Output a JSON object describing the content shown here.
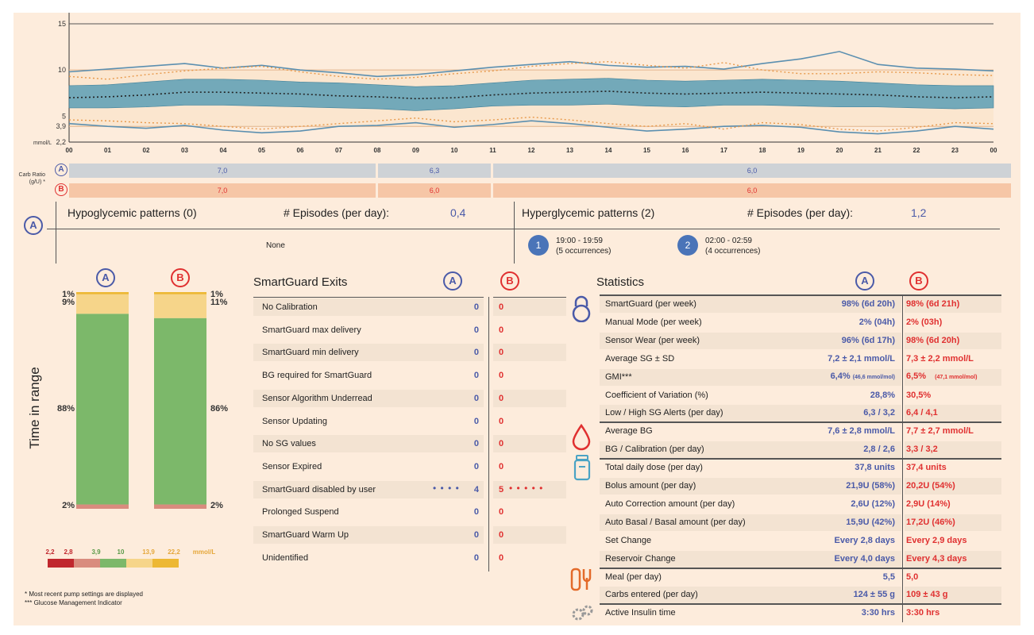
{
  "chart_data": {
    "type": "area",
    "y_unit": "mmol/L",
    "yticks": [
      {
        "label": "15",
        "v": 15
      },
      {
        "label": "10",
        "v": 10
      },
      {
        "label": "5",
        "v": 5
      },
      {
        "label": "3,9",
        "v": 3.9
      },
      {
        "label": "2,2",
        "v": 2.2
      }
    ],
    "x_hours": [
      "00",
      "01",
      "02",
      "03",
      "04",
      "05",
      "06",
      "07",
      "08",
      "09",
      "10",
      "11",
      "12",
      "13",
      "14",
      "15",
      "16",
      "17",
      "18",
      "19",
      "20",
      "21",
      "22",
      "23",
      "00"
    ],
    "median": [
      7.0,
      7.1,
      7.3,
      7.6,
      7.6,
      7.5,
      7.4,
      7.2,
      7.1,
      6.9,
      7.0,
      7.3,
      7.5,
      7.6,
      7.7,
      7.5,
      7.4,
      7.5,
      7.6,
      7.5,
      7.4,
      7.3,
      7.1,
      7.0,
      7.1
    ],
    "band_low": [
      5.9,
      5.9,
      6.0,
      6.2,
      6.2,
      6.1,
      6.0,
      5.9,
      5.8,
      5.6,
      5.8,
      6.1,
      6.2,
      6.2,
      6.3,
      6.1,
      6.0,
      6.2,
      6.2,
      6.1,
      6.0,
      6.0,
      5.9,
      5.8,
      5.9
    ],
    "band_high": [
      8.3,
      8.4,
      8.7,
      9.0,
      9.0,
      8.9,
      8.7,
      8.6,
      8.4,
      8.2,
      8.3,
      8.6,
      8.9,
      9.0,
      9.1,
      8.9,
      8.8,
      8.9,
      9.0,
      8.9,
      8.8,
      8.6,
      8.4,
      8.3,
      8.3
    ],
    "outer_low": [
      4.2,
      3.9,
      3.7,
      4.0,
      3.5,
      3.2,
      3.4,
      3.9,
      4.0,
      4.3,
      3.8,
      4.1,
      4.5,
      4.2,
      3.8,
      3.4,
      3.6,
      3.9,
      4.0,
      3.8,
      3.3,
      3.1,
      3.4,
      3.9,
      3.6
    ],
    "outer_high": [
      9.8,
      10.1,
      10.4,
      10.7,
      10.2,
      10.5,
      10.0,
      9.7,
      9.3,
      9.5,
      9.9,
      10.3,
      10.6,
      10.9,
      10.5,
      10.3,
      10.4,
      10.1,
      10.7,
      11.2,
      12.0,
      10.6,
      10.2,
      10.1,
      9.9
    ],
    "ref_low": [
      4.6,
      4.5,
      4.3,
      4.2,
      3.9,
      3.6,
      3.9,
      4.2,
      4.5,
      4.8,
      4.4,
      4.6,
      4.9,
      4.6,
      4.2,
      3.9,
      4.2,
      3.6,
      4.3,
      4.1,
      3.6,
      3.4,
      3.8,
      4.3,
      4.2
    ],
    "ref_high": [
      9.3,
      9.0,
      9.5,
      9.9,
      10.2,
      10.4,
      9.8,
      9.3,
      9.0,
      9.2,
      9.6,
      9.9,
      10.4,
      10.7,
      10.9,
      10.5,
      10.2,
      10.8,
      10.0,
      9.6,
      9.6,
      9.8,
      9.7,
      9.5,
      9.4
    ]
  },
  "carb_ratio": {
    "label": "Carb Ratio (g/U) *",
    "A": [
      {
        "value": "7,0"
      },
      {
        "value": "6,3"
      },
      {
        "value": "6,0"
      }
    ],
    "B": [
      {
        "value": "7,0"
      },
      {
        "value": "6,0"
      },
      {
        "value": "6,0"
      }
    ]
  },
  "patterns": {
    "marker": "A",
    "hypo_title": "Hypoglycemic patterns (0)",
    "hypo_ep_label": "# Episodes (per day):",
    "hypo_ep_value": "0,4",
    "hypo_body": "None",
    "hyper_title": "Hyperglycemic patterns (2)",
    "hyper_ep_label": "# Episodes (per day):",
    "hyper_ep_value": "1,2",
    "hyper_items": [
      {
        "n": "1",
        "time": "19:00 - 19:59",
        "occ": "(5 occurrences)"
      },
      {
        "n": "2",
        "time": "02:00 - 02:59",
        "occ": "(4 occurrences)"
      }
    ]
  },
  "time_in_range": {
    "ylabel": "Time in range",
    "A": {
      "marker": "A",
      "very_high": 1,
      "high": 9,
      "in_range": 88,
      "low": 2,
      "very_low": 0,
      "labels": {
        "very_high": "1%",
        "high": "9%",
        "in_range": "88%",
        "low": "2%"
      }
    },
    "B": {
      "marker": "B",
      "very_high": 1,
      "high": 11,
      "in_range": 86,
      "low": 2,
      "very_low": 0,
      "labels": {
        "very_high": "1%",
        "high": "11%",
        "in_range": "86%",
        "low": "2%"
      }
    },
    "legend_ticks": [
      "2,2",
      "2,8",
      "3,9",
      "10",
      "13,9",
      "22,2",
      "mmol/L"
    ],
    "colors": {
      "very_low": "#c0272d",
      "low": "#d98c7e",
      "in_range": "#7cb86a",
      "high": "#f6d58a",
      "very_high": "#edb834"
    }
  },
  "smartguard": {
    "title": "SmartGuard Exits",
    "col_a": "A",
    "col_b": "B",
    "rows": [
      {
        "label": "No Calibration",
        "a": "0",
        "b": "0"
      },
      {
        "label": "SmartGuard max delivery",
        "a": "0",
        "b": "0"
      },
      {
        "label": "SmartGuard min delivery",
        "a": "0",
        "b": "0"
      },
      {
        "label": "BG required for SmartGuard",
        "a": "0",
        "b": "0"
      },
      {
        "label": "Sensor Algorithm Underread",
        "a": "0",
        "b": "0"
      },
      {
        "label": "Sensor Updating",
        "a": "0",
        "b": "0"
      },
      {
        "label": "No SG values",
        "a": "0",
        "b": "0"
      },
      {
        "label": "Sensor Expired",
        "a": "0",
        "b": "0"
      },
      {
        "label": "SmartGuard disabled by user",
        "a": "4",
        "b": "5",
        "dots_a": "• • • •",
        "dots_b": "• • • • •"
      },
      {
        "label": "Prolonged Suspend",
        "a": "0",
        "b": "0"
      },
      {
        "label": "SmartGuard Warm Up",
        "a": "0",
        "b": "0"
      },
      {
        "label": "Unidentified",
        "a": "0",
        "b": "0"
      }
    ]
  },
  "statistics": {
    "title": "Statistics",
    "col_a": "A",
    "col_b": "B",
    "rows": [
      {
        "label": "SmartGuard (per week)",
        "a": "98% (6d 20h)",
        "b": "98% (6d 21h)"
      },
      {
        "label": "Manual Mode (per week)",
        "a": "2% (04h)",
        "b": "2% (03h)"
      },
      {
        "label": "Sensor Wear (per week)",
        "a": "96% (6d 17h)",
        "b": "98% (6d 20h)"
      },
      {
        "label": "Average SG ± SD",
        "a": "7,2 ± 2,1 mmol/L",
        "b": "7,3 ± 2,2 mmol/L"
      },
      {
        "label": "GMI***",
        "a": "6,4%",
        "a_sub": "(46,6 mmol/mol)",
        "b": "6,5%",
        "b_sub": "(47,1 mmol/mol)"
      },
      {
        "label": "Coefficient of Variation (%)",
        "a": "28,8%",
        "b": "30,5%"
      },
      {
        "label": "Low / High SG Alerts (per day)",
        "a": "6,3 / 3,2",
        "b": "6,4 / 4,1"
      },
      {
        "label": "Average BG",
        "a": "7,6 ± 2,8 mmol/L",
        "b": "7,7 ± 2,7 mmol/L"
      },
      {
        "label": "BG / Calibration (per day)",
        "a": "2,8 / 2,6",
        "b": "3,3 / 3,2"
      },
      {
        "label": "Total daily dose (per day)",
        "a": "37,8 units",
        "b": "37,4 units"
      },
      {
        "label": "Bolus amount (per day)",
        "a": "21,9U (58%)",
        "b": "20,2U (54%)"
      },
      {
        "label": "Auto Correction amount (per day)",
        "a": "2,6U (12%)",
        "b": "2,9U (14%)"
      },
      {
        "label": "Auto Basal / Basal amount (per day)",
        "a": "15,9U (42%)",
        "b": "17,2U (46%)"
      },
      {
        "label": "Set Change",
        "a": "Every 2,8 days",
        "b": "Every 2,9 days"
      },
      {
        "label": "Reservoir Change",
        "a": "Every 4,0 days",
        "b": "Every 4,3 days"
      },
      {
        "label": "Meal (per day)",
        "a": "5,5",
        "b": "5,0"
      },
      {
        "label": "Carbs entered (per day)",
        "a": "124 ± 55 g",
        "b": "109 ± 43 g"
      },
      {
        "label": "Active Insulin time",
        "a": "3:30 hrs",
        "b": "3:30 hrs"
      }
    ],
    "icons": [
      "lock-icon",
      "blood-drop-icon",
      "insulin-vial-icon",
      "meal-icon",
      "settings-gears-icon"
    ]
  },
  "footnotes": {
    "note1": "* Most recent pump settings are displayed",
    "note2": "*** Glucose Management Indicator"
  },
  "colors": {
    "A": "#4a5aa8",
    "B": "#e03030",
    "band": "#5b9db5",
    "outer": "#5b8fb0",
    "ref": "#e8994a"
  }
}
